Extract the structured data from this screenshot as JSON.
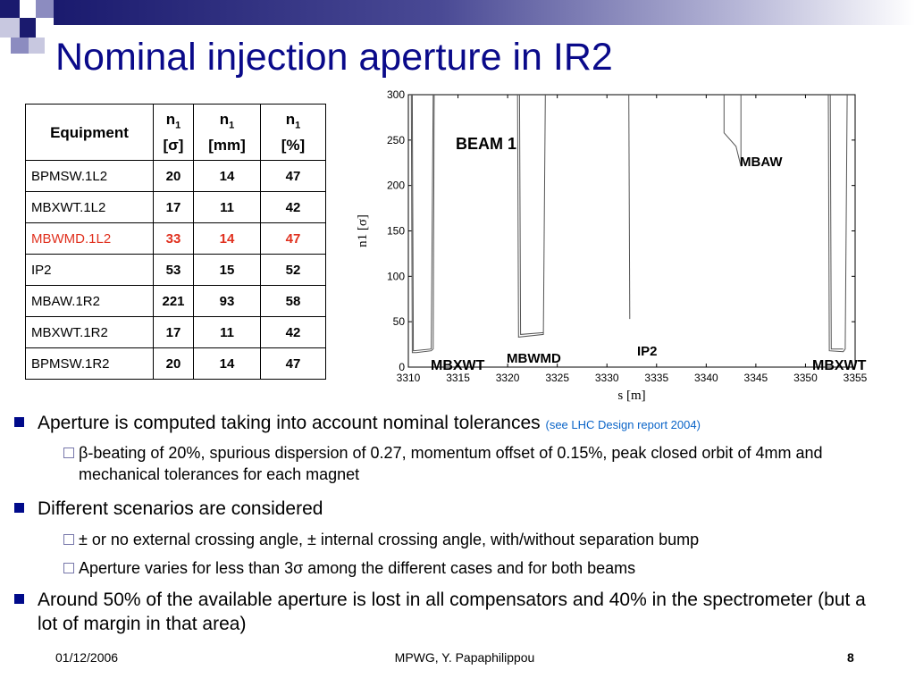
{
  "title": "Nominal injection aperture in IR2",
  "table": {
    "headers": [
      {
        "main": "Equipment",
        "sub": "",
        "unit": ""
      },
      {
        "main": "n",
        "sub": "1",
        "unit": "[σ]"
      },
      {
        "main": "n",
        "sub": "1",
        "unit": "[mm]"
      },
      {
        "main": "n",
        "sub": "1",
        "unit": "[%]"
      }
    ],
    "rows": [
      {
        "equipment": "BPMSW.1L2",
        "n1_sigma": "20",
        "n1_mm": "14",
        "n1_pct": "47"
      },
      {
        "equipment": "MBXWT.1L2",
        "n1_sigma": "17",
        "n1_mm": "11",
        "n1_pct": "42"
      },
      {
        "equipment": "MBWMD.1L2",
        "n1_sigma": "33",
        "n1_mm": "14",
        "n1_pct": "47",
        "highlight": true
      },
      {
        "equipment": "IP2",
        "n1_sigma": "53",
        "n1_mm": "15",
        "n1_pct": "52"
      },
      {
        "equipment": "MBAW.1R2",
        "n1_sigma": "221",
        "n1_mm": "93",
        "n1_pct": "58"
      },
      {
        "equipment": "MBXWT.1R2",
        "n1_sigma": "17",
        "n1_mm": "11",
        "n1_pct": "42"
      },
      {
        "equipment": "BPMSW.1R2",
        "n1_sigma": "20",
        "n1_mm": "14",
        "n1_pct": "47"
      }
    ],
    "highlight_color": "#e0301e"
  },
  "chart_data": {
    "type": "line",
    "title": "",
    "xlabel": "s [m]",
    "ylabel": "n1 [σ]",
    "xlim": [
      3310,
      3355
    ],
    "ylim": [
      0,
      300
    ],
    "xticks": [
      3310,
      3315,
      3320,
      3325,
      3330,
      3335,
      3340,
      3345,
      3350,
      3355
    ],
    "yticks": [
      0,
      50,
      100,
      150,
      200,
      250,
      300
    ],
    "annotations": [
      "BEAM 1",
      "MBAW",
      "MBWMD",
      "IP2",
      "MBXWT",
      "MBXWT"
    ],
    "series": [
      {
        "x": [
          3310.3,
          3310.4,
          3310.8,
          3312.3,
          3312.5,
          3312.6
        ],
        "y": [
          300,
          16,
          16,
          18,
          20,
          300
        ]
      },
      {
        "x": [
          3310.4,
          3310.5,
          3312.3,
          3312.5
        ],
        "y": [
          300,
          18,
          20,
          300
        ]
      },
      {
        "x": [
          3321.0,
          3321.1,
          3323.6,
          3323.8
        ],
        "y": [
          300,
          33,
          36,
          300
        ]
      },
      {
        "x": [
          3321.2,
          3321.3,
          3323.6
        ],
        "y": [
          300,
          36,
          38
        ]
      },
      {
        "x": [
          3332.2,
          3332.3
        ],
        "y": [
          300,
          53
        ]
      },
      {
        "x": [
          3341.8,
          3341.8,
          3343.0,
          3343.5,
          3343.5
        ],
        "y": [
          300,
          258,
          243,
          221,
          300
        ]
      },
      {
        "x": [
          3352.3,
          3352.4,
          3353.8,
          3354.0,
          3354.2
        ],
        "y": [
          300,
          18,
          17,
          20,
          300
        ]
      },
      {
        "x": [
          3352.5,
          3352.6,
          3353.8
        ],
        "y": [
          300,
          20,
          20
        ]
      }
    ]
  },
  "bullets": [
    {
      "text": "Aperture is computed taking into account nominal tolerances ",
      "ref": "(see LHC Design report 2004)",
      "subs": [
        "β-beating of 20%, spurious dispersion of 0.27, momentum offset of 0.15%, peak closed orbit of 4mm and mechanical tolerances for each magnet"
      ]
    },
    {
      "text": "Different scenarios are considered",
      "ref": "",
      "subs": [
        "± or no external crossing angle, ± internal crossing angle, with/without separation bump",
        "Aperture varies for less than 3σ among the different cases and for both beams"
      ]
    },
    {
      "text": "Around 50% of the available aperture is lost in all compensators and 40% in the spectrometer (but a lot of margin in that area)",
      "ref": "",
      "subs": []
    }
  ],
  "footer": {
    "date": "01/12/2006",
    "author": "MPWG, Y. Papaphilippou",
    "page": "8"
  },
  "colors": {
    "title": "#0a0a8a",
    "accent": "#000a8a",
    "ref": "#0a64c8"
  }
}
